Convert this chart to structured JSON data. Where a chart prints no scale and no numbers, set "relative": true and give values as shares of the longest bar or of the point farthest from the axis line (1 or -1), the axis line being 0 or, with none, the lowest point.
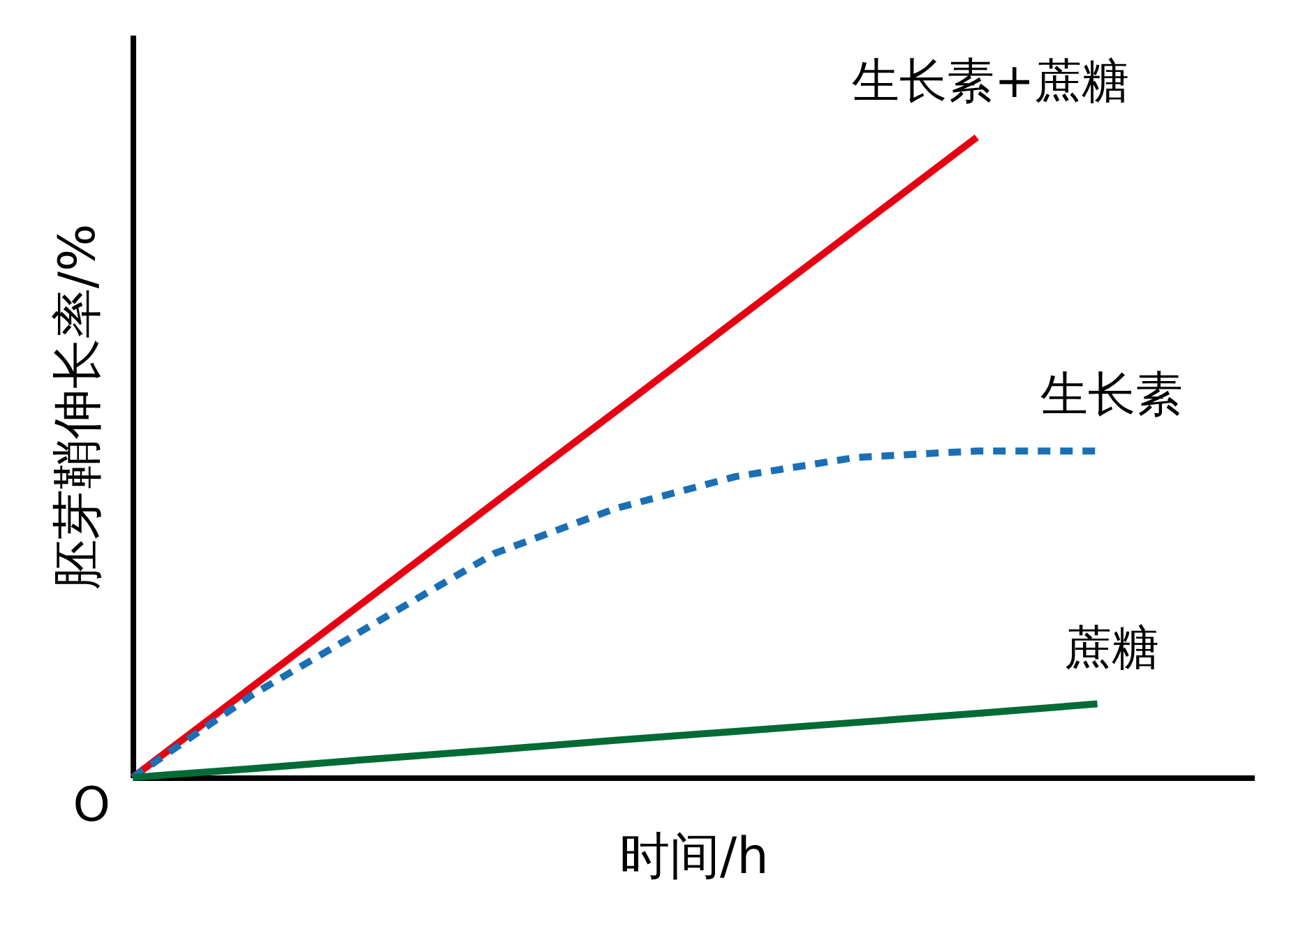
{
  "chart_data": {
    "type": "line",
    "relative": true,
    "xlabel": "时间/h",
    "ylabel": "胚芽鞘伸长率/%",
    "annotations": [
      "O"
    ],
    "marker": "none",
    "categories": [
      null,
      null,
      null,
      null,
      null,
      null,
      null,
      null,
      null
    ],
    "series": [
      {
        "name": "生长素+蔗糖",
        "color": "#e60012",
        "line_style": "solid",
        "values": [
          0,
          0.143,
          0.286,
          0.429,
          0.571,
          0.714,
          0.857,
          1.0,
          null
        ]
      },
      {
        "name": "生长素",
        "color": "#1a6fb5",
        "line_style": "dashed",
        "values": [
          0,
          0.13,
          0.24,
          0.35,
          0.42,
          0.47,
          0.5,
          0.51,
          0.51
        ]
      },
      {
        "name": "蔗糖",
        "color": "#006b35",
        "line_style": "solid",
        "values": [
          0,
          0.014,
          0.029,
          0.043,
          0.058,
          0.072,
          0.086,
          0.1,
          0.115
        ]
      }
    ]
  }
}
